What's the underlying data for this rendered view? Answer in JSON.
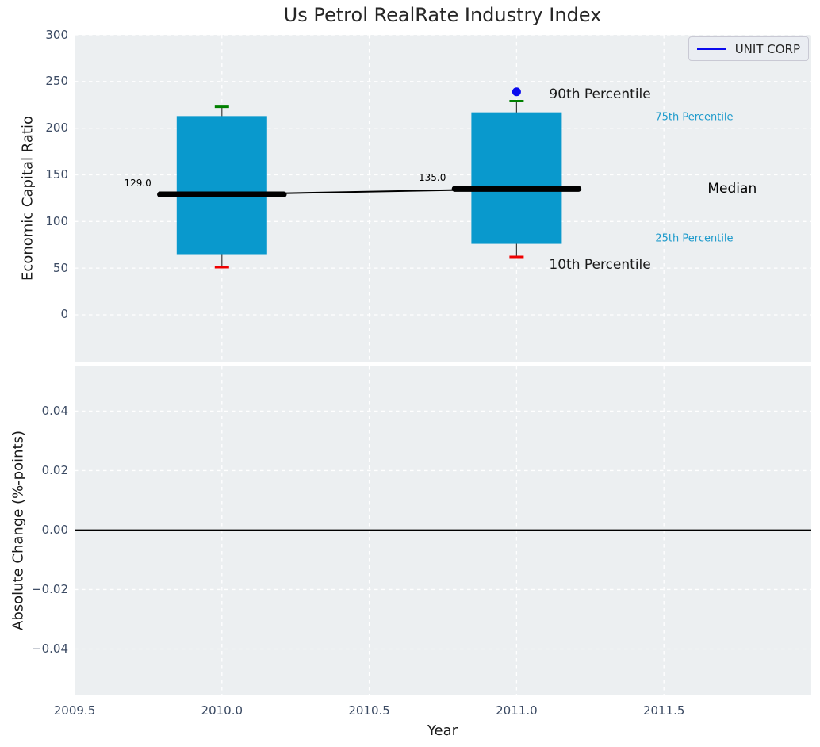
{
  "chart_data": {
    "type": "box",
    "title": "Us Petrol RealRate Industry Index",
    "xlabel": "Year",
    "legend": {
      "label": "UNIT CORP",
      "line_color": "#0a0aee",
      "position": "upper right"
    },
    "top": {
      "ylabel": "Economic Capital Ratio",
      "ylim": [
        -51,
        300
      ],
      "xlim": [
        2009.5,
        2012.0
      ],
      "grid": "white dashed",
      "background": "#eceff1",
      "yticks": [
        {
          "v": 300,
          "label": "300"
        },
        {
          "v": 250,
          "label": "250"
        },
        {
          "v": 200,
          "label": "200"
        },
        {
          "v": 150,
          "label": "150"
        },
        {
          "v": 100,
          "label": "100"
        },
        {
          "v": 50,
          "label": "50"
        },
        {
          "v": 0,
          "label": "0"
        }
      ],
      "xticks": [
        {
          "v": 2009.5,
          "label": "2009.5"
        },
        {
          "v": 2010.0,
          "label": "2010.0"
        },
        {
          "v": 2010.5,
          "label": "2010.5"
        },
        {
          "v": 2011.0,
          "label": "2011.0"
        },
        {
          "v": 2011.5,
          "label": "2011.5"
        }
      ],
      "box_color": "#0999cd",
      "cap_top_color": "#008000",
      "cap_bottom_color": "#f00000",
      "median_color": "#000000",
      "whisker_color": "#3d3d3d",
      "boxes": [
        {
          "x": 2010.0,
          "p10": 51,
          "p25": 65,
          "median": 129,
          "p75": 213,
          "p90": 223,
          "median_label": "129.0"
        },
        {
          "x": 2011.0,
          "p10": 62,
          "p25": 76,
          "median": 135,
          "p75": 217,
          "p90": 229,
          "median_label": "135.0"
        }
      ],
      "series": [
        {
          "name": "UNIT CORP",
          "marker": "dot",
          "color": "#0a0aee",
          "x": [
            2011.0
          ],
          "y": [
            239
          ]
        }
      ],
      "percentile_labels": {
        "p90": {
          "text": "90th Percentile",
          "color": "#1a1a1a"
        },
        "p75": {
          "text": "75th Percentile",
          "color": "#1f9bcc"
        },
        "median": {
          "text": "Median",
          "color": "#000000"
        },
        "p25": {
          "text": "25th Percentile",
          "color": "#1f9bcc"
        },
        "p10": {
          "text": "10th Percentile",
          "color": "#1a1a1a"
        }
      }
    },
    "bottom": {
      "ylabel": "Absolute Change (%-points)",
      "ylim": [
        -0.0556,
        0.0553
      ],
      "grid": "white dashed",
      "background": "#eceff1",
      "zero_line": 0.0,
      "yticks": [
        {
          "v": 0.04,
          "label": "0.04"
        },
        {
          "v": 0.02,
          "label": "0.02"
        },
        {
          "v": 0.0,
          "label": "0.00"
        },
        {
          "v": -0.02,
          "label": "−0.02"
        },
        {
          "v": -0.04,
          "label": "−0.04"
        }
      ]
    }
  }
}
